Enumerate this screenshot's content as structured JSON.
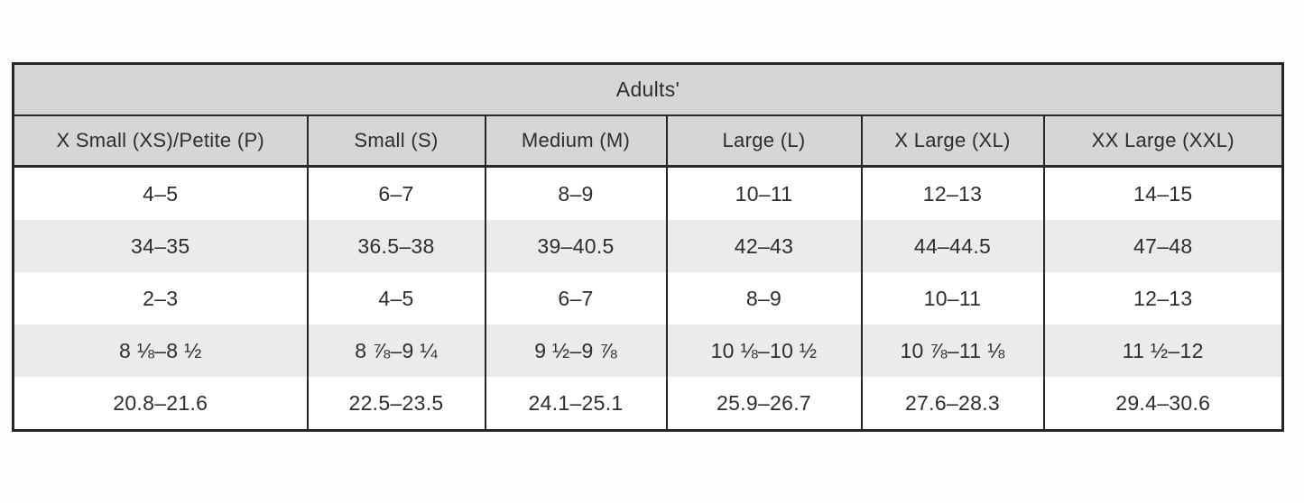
{
  "table": {
    "title": "Adults'",
    "columns": [
      "X Small (XS)/Petite (P)",
      "Small (S)",
      "Medium (M)",
      "Large (L)",
      "X Large (XL)",
      "XX Large (XXL)"
    ],
    "rows": [
      [
        "4–5",
        "6–7",
        "8–9",
        "10–11",
        "12–13",
        "14–15"
      ],
      [
        "34–35",
        "36.5–38",
        "39–40.5",
        "42–43",
        "44–44.5",
        "47–48"
      ],
      [
        "2–3",
        "4–5",
        "6–7",
        "8–9",
        "10–11",
        "12–13"
      ],
      [
        "8 ⅛–8 ½",
        "8 ⅞–9 ¼",
        "9 ½–9 ⅞",
        "10 ⅛–10 ½",
        "10 ⅞–11 ⅛",
        "11 ½–12"
      ],
      [
        "20.8–21.6",
        "22.5–23.5",
        "24.1–25.1",
        "25.9–26.7",
        "27.6–28.3",
        "29.4–30.6"
      ]
    ],
    "colors": {
      "header_bg": "#d6d6d6",
      "stripe_bg": "#ebebeb",
      "border": "#262626",
      "text": "#2d2d2d"
    }
  }
}
